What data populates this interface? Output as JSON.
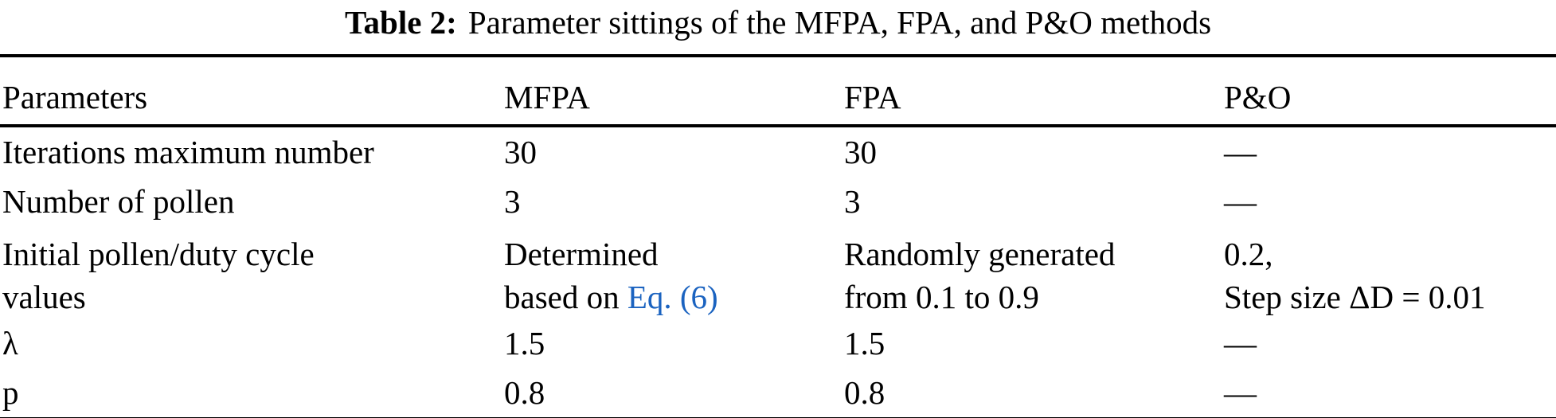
{
  "title": {
    "prefix": "Table 2:",
    "text": "Parameter sittings of the MFPA, FPA, and P&O methods"
  },
  "table": {
    "columns": [
      "Parameters",
      "MFPA",
      "FPA",
      "P&O"
    ],
    "rows": [
      {
        "param": "Iterations maximum number",
        "mfpa": "30",
        "fpa": "30",
        "po": "—"
      },
      {
        "param": "Number of pollen",
        "mfpa": "3",
        "fpa": "3",
        "po": "—"
      },
      {
        "param_lines": [
          "Initial pollen/duty cycle",
          "values"
        ],
        "mfpa_lines": [
          "Determined",
          "based on "
        ],
        "mfpa_link": "Eq. (6)",
        "fpa_lines": [
          "Randomly generated",
          "from 0.1 to 0.9"
        ],
        "po_lines": [
          "0.2,",
          "Step size ΔD = 0.01"
        ]
      },
      {
        "param": "λ",
        "mfpa": "1.5",
        "fpa": "1.5",
        "po": "—"
      },
      {
        "param": "p",
        "mfpa": "0.8",
        "fpa": "0.8",
        "po": "—"
      }
    ]
  },
  "colors": {
    "text": "#000000",
    "rule": "#000000",
    "background": "#ffffff",
    "link": "#1b63c0"
  }
}
